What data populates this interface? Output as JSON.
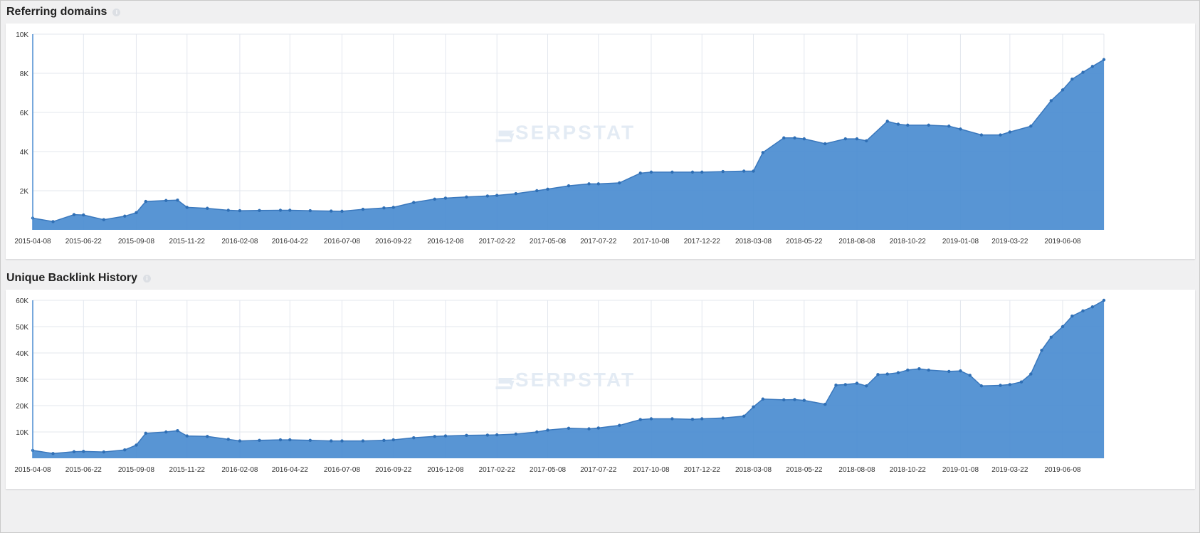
{
  "charts": [
    {
      "title": "Referring domains",
      "watermark": "SERPSTAT"
    },
    {
      "title": "Unique Backlink History",
      "watermark": "SERPSTAT"
    }
  ],
  "chart_data": [
    {
      "type": "area",
      "title": "Referring domains",
      "xlabel": "",
      "ylabel": "",
      "ylim": [
        0,
        10000
      ],
      "yticks": [
        "",
        "2K",
        "4K",
        "6K",
        "8K",
        "10K"
      ],
      "xticks": [
        "2015-04-08",
        "2015-06-22",
        "2015-09-08",
        "2015-11-22",
        "2016-02-08",
        "2016-04-22",
        "2016-07-08",
        "2016-09-22",
        "2016-12-08",
        "2017-02-22",
        "2017-05-08",
        "2017-07-22",
        "2017-10-08",
        "2017-12-22",
        "2018-03-08",
        "2018-05-22",
        "2018-08-08",
        "2018-10-22",
        "2019-01-08",
        "2019-03-22",
        "2019-06-08"
      ],
      "grid": true,
      "color": "#4a8cd0",
      "series": [
        {
          "x": [
            "2015-04-08",
            "2015-05-08",
            "2015-06-08",
            "2015-06-22",
            "2015-07-22",
            "2015-08-22",
            "2015-09-08",
            "2015-09-22",
            "2015-10-22",
            "2015-11-08",
            "2015-11-22",
            "2015-12-22",
            "2016-01-22",
            "2016-02-08",
            "2016-03-08",
            "2016-04-08",
            "2016-04-22",
            "2016-05-22",
            "2016-06-22",
            "2016-07-08",
            "2016-08-08",
            "2016-09-08",
            "2016-09-22",
            "2016-10-22",
            "2016-11-22",
            "2016-12-08",
            "2017-01-08",
            "2017-02-08",
            "2017-02-22",
            "2017-03-22",
            "2017-04-22",
            "2017-05-08",
            "2017-06-08",
            "2017-07-08",
            "2017-07-22",
            "2017-08-22",
            "2017-09-22",
            "2017-10-08",
            "2017-11-08",
            "2017-12-08",
            "2017-12-22",
            "2018-01-22",
            "2018-02-22",
            "2018-03-08",
            "2018-03-22",
            "2018-04-22",
            "2018-05-08",
            "2018-05-22",
            "2018-06-22",
            "2018-07-22",
            "2018-08-08",
            "2018-08-22",
            "2018-09-22",
            "2018-10-08",
            "2018-10-22",
            "2018-11-22",
            "2018-12-22",
            "2019-01-08",
            "2019-02-08",
            "2019-03-08",
            "2019-03-22",
            "2019-04-22",
            "2019-05-22",
            "2019-06-08",
            "2019-06-22",
            "2019-07-08",
            "2019-07-22",
            "2019-08-08"
          ],
          "values": [
            600,
            420,
            780,
            760,
            520,
            700,
            880,
            1450,
            1500,
            1520,
            1150,
            1100,
            1000,
            980,
            990,
            1000,
            1000,
            980,
            960,
            950,
            1050,
            1120,
            1150,
            1400,
            1570,
            1620,
            1680,
            1730,
            1760,
            1850,
            2000,
            2080,
            2250,
            2350,
            2350,
            2400,
            2900,
            2950,
            2950,
            2950,
            2950,
            2980,
            3000,
            3000,
            3950,
            4700,
            4700,
            4650,
            4400,
            4650,
            4650,
            4550,
            5550,
            5400,
            5350,
            5350,
            5300,
            5150,
            4850,
            4850,
            5000,
            5300,
            6600,
            7150,
            7700,
            8050,
            8350,
            8700
          ]
        }
      ]
    },
    {
      "type": "area",
      "title": "Unique Backlink History",
      "xlabel": "",
      "ylabel": "",
      "ylim": [
        0,
        60000
      ],
      "yticks": [
        "",
        "10K",
        "20K",
        "30K",
        "40K",
        "50K",
        "60K"
      ],
      "xticks": [
        "2015-04-08",
        "2015-06-22",
        "2015-09-08",
        "2015-11-22",
        "2016-02-08",
        "2016-04-22",
        "2016-07-08",
        "2016-09-22",
        "2016-12-08",
        "2017-02-22",
        "2017-05-08",
        "2017-07-22",
        "2017-10-08",
        "2017-12-22",
        "2018-03-08",
        "2018-05-22",
        "2018-08-08",
        "2018-10-22",
        "2019-01-08",
        "2019-03-22",
        "2019-06-08"
      ],
      "grid": true,
      "color": "#4a8cd0",
      "series": [
        {
          "x": [
            "2015-04-08",
            "2015-05-08",
            "2015-06-08",
            "2015-06-22",
            "2015-07-22",
            "2015-08-22",
            "2015-09-08",
            "2015-09-22",
            "2015-10-22",
            "2015-11-08",
            "2015-11-22",
            "2015-12-22",
            "2016-01-22",
            "2016-02-08",
            "2016-03-08",
            "2016-04-08",
            "2016-04-22",
            "2016-05-22",
            "2016-06-22",
            "2016-07-08",
            "2016-08-08",
            "2016-09-08",
            "2016-09-22",
            "2016-10-22",
            "2016-11-22",
            "2016-12-08",
            "2017-01-08",
            "2017-02-08",
            "2017-02-22",
            "2017-03-22",
            "2017-04-22",
            "2017-05-08",
            "2017-06-08",
            "2017-07-08",
            "2017-07-22",
            "2017-08-22",
            "2017-09-22",
            "2017-10-08",
            "2017-11-08",
            "2017-12-08",
            "2017-12-22",
            "2018-01-22",
            "2018-02-22",
            "2018-03-08",
            "2018-03-22",
            "2018-04-22",
            "2018-05-08",
            "2018-05-22",
            "2018-06-22",
            "2018-07-08",
            "2018-07-22",
            "2018-08-08",
            "2018-08-22",
            "2018-09-08",
            "2018-09-22",
            "2018-10-08",
            "2018-10-22",
            "2018-11-08",
            "2018-11-22",
            "2018-12-22",
            "2019-01-08",
            "2019-01-22",
            "2019-02-08",
            "2019-03-08",
            "2019-03-22",
            "2019-04-08",
            "2019-04-22",
            "2019-05-08",
            "2019-05-22",
            "2019-06-08",
            "2019-06-22",
            "2019-07-08",
            "2019-07-22",
            "2019-08-08"
          ],
          "values": [
            3000,
            1800,
            2500,
            2600,
            2400,
            3200,
            5000,
            9500,
            10000,
            10500,
            8500,
            8300,
            7200,
            6600,
            6800,
            7000,
            7000,
            6800,
            6600,
            6600,
            6600,
            6800,
            7000,
            7800,
            8300,
            8500,
            8700,
            8800,
            8900,
            9200,
            10000,
            10700,
            11400,
            11200,
            11500,
            12500,
            14700,
            15000,
            15000,
            14800,
            15000,
            15300,
            16000,
            19500,
            22500,
            22200,
            22300,
            22000,
            20500,
            27800,
            28000,
            28500,
            27500,
            31800,
            32000,
            32500,
            33500,
            34000,
            33500,
            33000,
            33200,
            31500,
            27500,
            27700,
            28000,
            29000,
            32000,
            41000,
            46000,
            50000,
            54000,
            56000,
            57500,
            60000
          ]
        }
      ]
    }
  ]
}
